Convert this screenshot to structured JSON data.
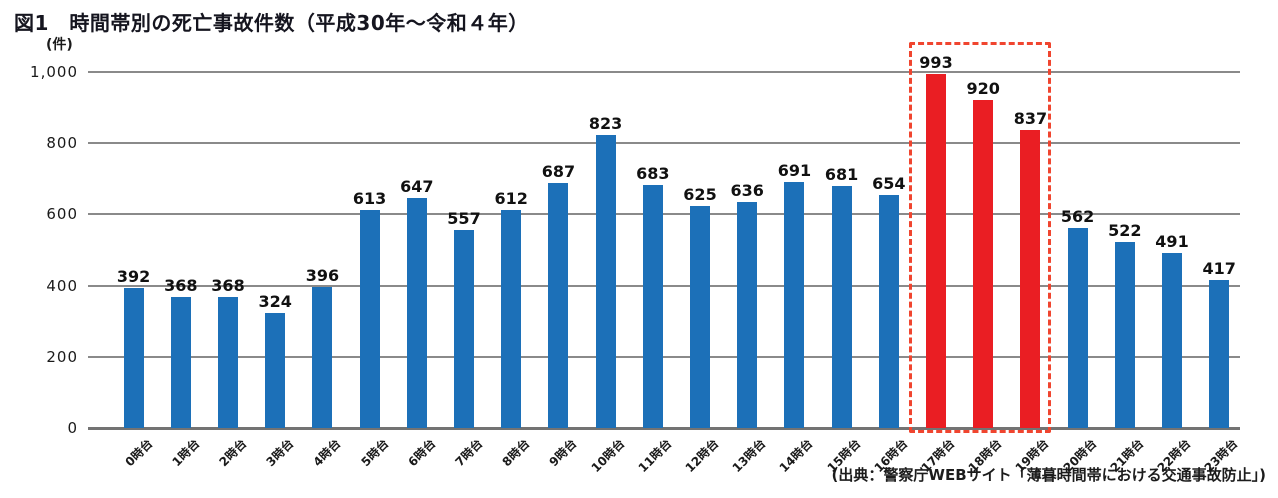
{
  "title": "図1　時間帯別の死亡事故件数（平成30年～令和４年）",
  "source": "(出典：警察庁WEBサイト「薄暮時間帯における交通事故防止」)",
  "chart_data": {
    "type": "bar",
    "title": "図1　時間帯別の死亡事故件数（平成30年～令和４年）",
    "unit_label": "(件)",
    "categories": [
      "0時台",
      "1時台",
      "2時台",
      "3時台",
      "4時台",
      "5時台",
      "6時台",
      "7時台",
      "8時台",
      "9時台",
      "10時台",
      "11時台",
      "12時台",
      "13時台",
      "14時台",
      "15時台",
      "16時台",
      "17時台",
      "18時台",
      "19時台",
      "20時台",
      "21時台",
      "22時台",
      "23時台"
    ],
    "values": [
      392,
      368,
      368,
      324,
      396,
      613,
      647,
      557,
      612,
      687,
      823,
      683,
      625,
      636,
      691,
      681,
      654,
      993,
      920,
      837,
      562,
      522,
      491,
      417
    ],
    "highlight_indices": [
      17,
      18,
      19
    ],
    "xlabel": "",
    "ylabel": "(件)",
    "ylim": [
      0,
      1000
    ],
    "y_ticks": [
      "0",
      "200",
      "400",
      "600",
      "800",
      "1,000"
    ],
    "y_tick_values": [
      0,
      200,
      400,
      600,
      800,
      1000
    ],
    "grid": "horizontal",
    "legend": "none",
    "colors": {
      "bar": "#1c70b8",
      "highlight_bar": "#ea1e23",
      "highlight_box": "#f0452f",
      "gridline": "#8a8a8a",
      "axis": "#737373",
      "label_text": "#111111"
    }
  }
}
